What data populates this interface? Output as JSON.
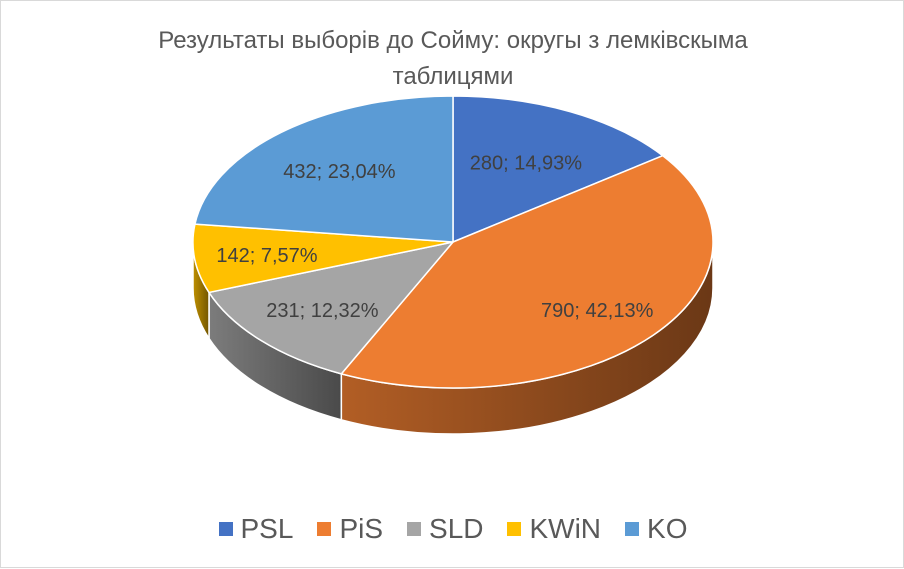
{
  "chart_data": {
    "type": "pie",
    "title": "Результаты выборів до Сойму: округы з лемківскыма таблицями",
    "categories": [
      "PSL",
      "PiS",
      "SLD",
      "KWiN",
      "KO"
    ],
    "values": [
      280,
      790,
      231,
      142,
      432
    ],
    "percentages": [
      "14,93%",
      "42,13%",
      "12,32%",
      "7,57%",
      "23,04%"
    ],
    "data_labels": [
      "280; 14,93%",
      "790; 42,13%",
      "231; 12,32%",
      "142; 7,57%",
      "432; 23,04%"
    ],
    "colors": [
      "#4472C4",
      "#ED7D31",
      "#A5A5A5",
      "#FFC000",
      "#5B9BD5"
    ],
    "legend_position": "bottom",
    "style": "3d-pie"
  },
  "legend": {
    "items": [
      {
        "label": "PSL",
        "color": "#4472C4"
      },
      {
        "label": "PiS",
        "color": "#ED7D31"
      },
      {
        "label": "SLD",
        "color": "#A5A5A5"
      },
      {
        "label": "KWiN",
        "color": "#FFC000"
      },
      {
        "label": "KO",
        "color": "#5B9BD5"
      }
    ]
  }
}
